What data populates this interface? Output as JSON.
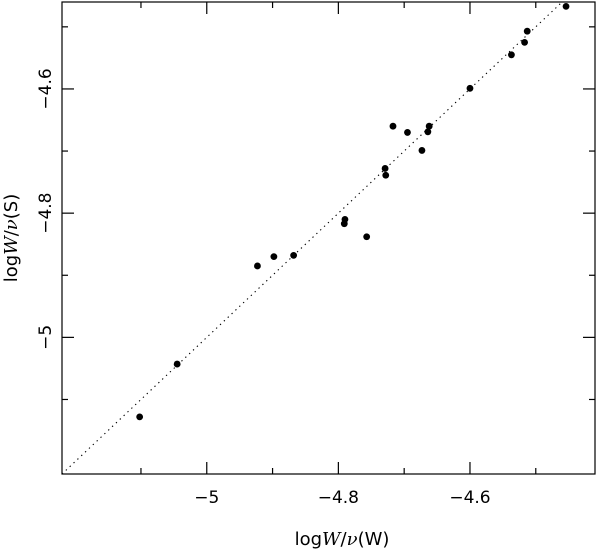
{
  "chart_data": {
    "type": "scatter",
    "title": "",
    "xlabel": {
      "prefix": "log",
      "var": "W",
      "slash": "/",
      "nu": "ν",
      "suffix": "(W)"
    },
    "ylabel": {
      "prefix": "log",
      "var": "W",
      "slash": "/",
      "nu": "ν",
      "suffix": "(S)"
    },
    "xlim": [
      -5.22,
      -4.41
    ],
    "ylim": [
      -5.22,
      -4.46
    ],
    "xticks_major": [
      {
        "value": -5.0,
        "label": "−5"
      },
      {
        "value": -4.8,
        "label": "−4.8"
      },
      {
        "value": -4.6,
        "label": "−4.6"
      }
    ],
    "yticks_major": [
      {
        "value": -5.0,
        "label": "−5"
      },
      {
        "value": -4.8,
        "label": "−4.8"
      },
      {
        "value": -4.6,
        "label": "−4.6"
      }
    ],
    "minor_tick_step": 0.1,
    "reference_line": {
      "style": "dotted",
      "relation": "y = x"
    },
    "points": [
      {
        "x": -5.102,
        "y": -5.128
      },
      {
        "x": -5.045,
        "y": -5.043
      },
      {
        "x": -4.923,
        "y": -4.885
      },
      {
        "x": -4.898,
        "y": -4.87
      },
      {
        "x": -4.868,
        "y": -4.868
      },
      {
        "x": -4.79,
        "y": -4.81
      },
      {
        "x": -4.791,
        "y": -4.817
      },
      {
        "x": -4.757,
        "y": -4.838
      },
      {
        "x": -4.729,
        "y": -4.728
      },
      {
        "x": -4.728,
        "y": -4.739
      },
      {
        "x": -4.717,
        "y": -4.66
      },
      {
        "x": -4.695,
        "y": -4.67
      },
      {
        "x": -4.673,
        "y": -4.699
      },
      {
        "x": -4.664,
        "y": -4.669
      },
      {
        "x": -4.662,
        "y": -4.66
      },
      {
        "x": -4.6,
        "y": -4.599
      },
      {
        "x": -4.537,
        "y": -4.545
      },
      {
        "x": -4.517,
        "y": -4.525
      },
      {
        "x": -4.513,
        "y": -4.507
      },
      {
        "x": -4.454,
        "y": -4.467
      }
    ]
  }
}
